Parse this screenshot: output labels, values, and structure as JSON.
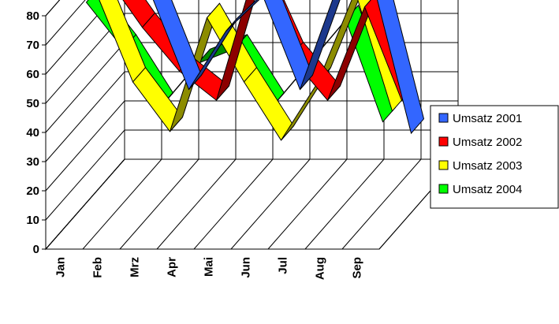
{
  "chart_data": {
    "type": "line",
    "style": "3d-ribbon",
    "categories": [
      "Jan",
      "Feb",
      "Mrz",
      "Apr",
      "Mai",
      "Jun",
      "Jul",
      "Aug",
      "Sep"
    ],
    "ylim": [
      0,
      80
    ],
    "yticks": [
      0,
      10,
      20,
      30,
      40,
      50,
      60,
      70,
      80
    ],
    "grid": true,
    "legend_position": "right",
    "series": [
      {
        "name": "Umsatz 2001",
        "color": "#3366ff",
        "values": [
          70,
          67,
          35,
          55,
          67,
          35,
          70,
          70,
          20
        ]
      },
      {
        "name": "Umsatz 2002",
        "color": "#ff0000",
        "values": [
          78,
          60,
          45,
          35,
          78,
          50,
          35,
          67,
          35
        ]
      },
      {
        "name": "Umsatz 2003",
        "color": "#ffff00",
        "values": [
          76,
          45,
          28,
          67,
          45,
          25,
          45,
          76,
          35
        ]
      },
      {
        "name": "Umsatz 2004",
        "color": "#00ff00",
        "values": [
          76,
          60,
          40,
          55,
          60,
          40,
          55,
          70,
          35
        ]
      }
    ]
  }
}
